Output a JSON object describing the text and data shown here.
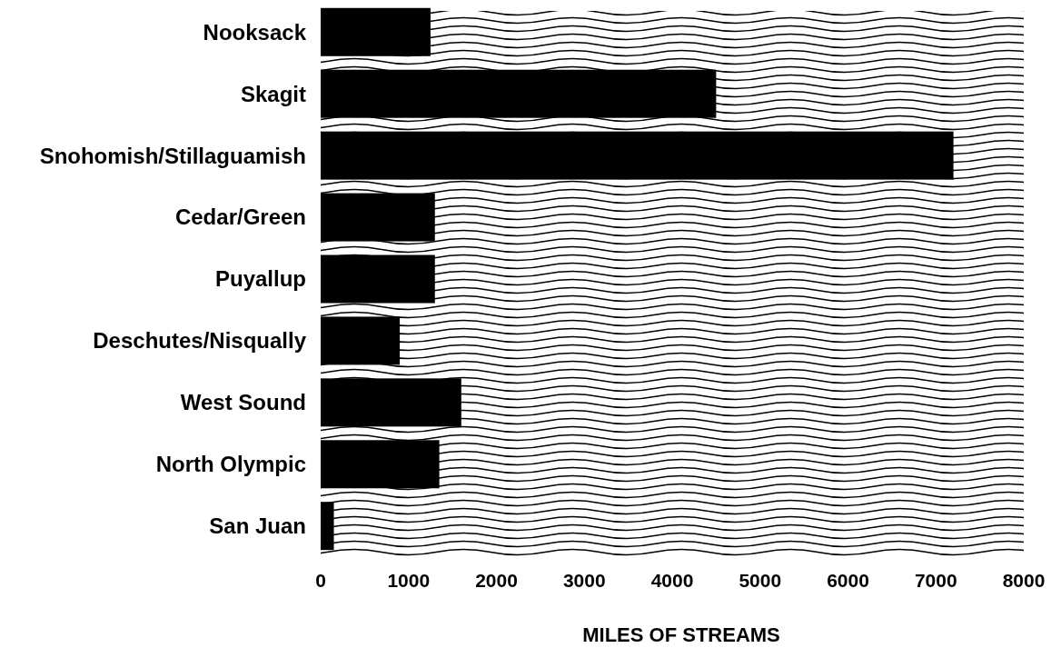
{
  "chart_data": {
    "type": "bar",
    "orientation": "horizontal",
    "xlabel": "MILES OF STREAMS",
    "categories": [
      "Nooksack",
      "Skagit",
      "Snohomish/Stillaguamish",
      "Cedar/Green",
      "Puyallup",
      "Deschutes/Nisqually",
      "West Sound",
      "North Olympic",
      "San Juan"
    ],
    "values": [
      1250,
      4500,
      7200,
      1300,
      1300,
      900,
      1600,
      1350,
      150
    ],
    "color": "#000000",
    "xlim": [
      0,
      8000
    ],
    "xticks": [
      0,
      1000,
      2000,
      3000,
      4000,
      5000,
      6000,
      7000,
      8000
    ],
    "grid": false
  }
}
